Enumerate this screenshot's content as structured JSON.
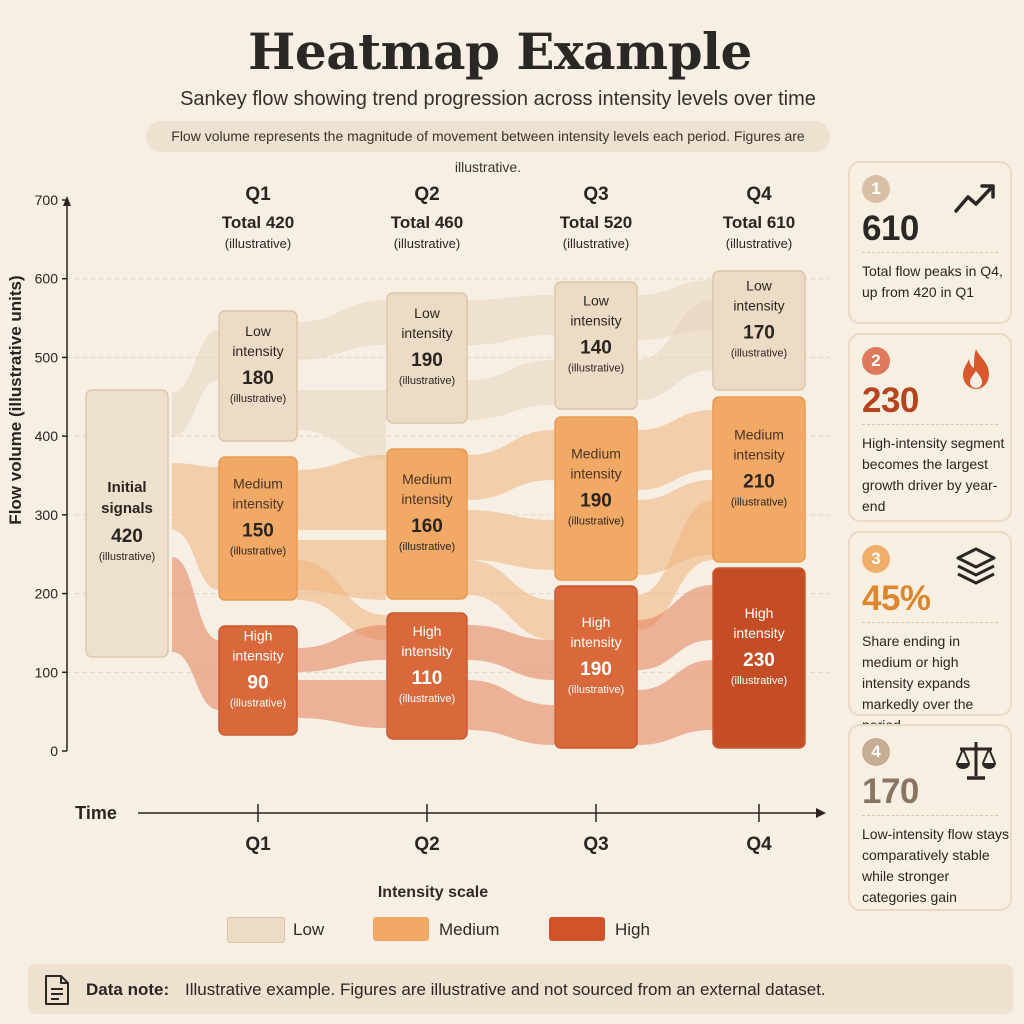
{
  "title": "Heatmap Example",
  "subtitle": "Sankey flow showing trend progression across intensity levels over time",
  "banner": "Flow volume represents the magnitude of movement between intensity levels each period. Figures are illustrative.",
  "colors": {
    "background": "#f7efe4",
    "low": "#ecdcc5",
    "medium": "#f1a965",
    "high": "#d9683a",
    "high_q4": "#c44d25",
    "initial": "#ede0cc"
  },
  "chart_data": {
    "type": "sankey",
    "ylabel": "Flow volume (illustrative units)",
    "xlabel": "Time",
    "ylim": [
      0,
      700
    ],
    "yticks": [
      0,
      100,
      200,
      300,
      400,
      500,
      600,
      700
    ],
    "periods": [
      "Q1",
      "Q2",
      "Q3",
      "Q4"
    ],
    "initial": {
      "label_lines": [
        "Initial",
        "signals"
      ],
      "value": 420,
      "note": "(illustrative)"
    },
    "period_totals": [
      {
        "period": "Q1",
        "total": "Total 420",
        "note": "(illustrative)"
      },
      {
        "period": "Q2",
        "total": "Total 460",
        "note": "(illustrative)"
      },
      {
        "period": "Q3",
        "total": "Total 520",
        "note": "(illustrative)"
      },
      {
        "period": "Q4",
        "total": "Total 610",
        "note": "(illustrative)"
      }
    ],
    "nodes": [
      {
        "period": "Q1",
        "level": "low",
        "label_lines": [
          "Low",
          "intensity"
        ],
        "value": 180,
        "note": "(illustrative)"
      },
      {
        "period": "Q1",
        "level": "medium",
        "label_lines": [
          "Medium",
          "intensity"
        ],
        "value": 150,
        "note": "(illustrative)"
      },
      {
        "period": "Q1",
        "level": "high",
        "label_lines": [
          "High",
          "intensity"
        ],
        "value": 90,
        "note": "(illustrative)"
      },
      {
        "period": "Q2",
        "level": "low",
        "label_lines": [
          "Low",
          "intensity"
        ],
        "value": 190,
        "note": "(illustrative)"
      },
      {
        "period": "Q2",
        "level": "medium",
        "label_lines": [
          "Medium",
          "intensity"
        ],
        "value": 160,
        "note": "(illustrative)"
      },
      {
        "period": "Q2",
        "level": "high",
        "label_lines": [
          "High",
          "intensity"
        ],
        "value": 110,
        "note": "(illustrative)"
      },
      {
        "period": "Q3",
        "level": "low",
        "label_lines": [
          "Low",
          "intensity"
        ],
        "value": 140,
        "note": "(illustrative)"
      },
      {
        "period": "Q3",
        "level": "medium",
        "label_lines": [
          "Medium",
          "intensity"
        ],
        "value": 190,
        "note": "(illustrative)"
      },
      {
        "period": "Q3",
        "level": "high",
        "label_lines": [
          "High",
          "intensity"
        ],
        "value": 190,
        "note": "(illustrative)"
      },
      {
        "period": "Q4",
        "level": "low",
        "label_lines": [
          "Low",
          "intensity"
        ],
        "value": 170,
        "note": "(illustrative)"
      },
      {
        "period": "Q4",
        "level": "medium",
        "label_lines": [
          "Medium",
          "intensity"
        ],
        "value": 210,
        "note": "(illustrative)"
      },
      {
        "period": "Q4",
        "level": "high",
        "label_lines": [
          "High",
          "intensity"
        ],
        "value": 230,
        "note": "(illustrative)"
      }
    ],
    "legend": {
      "title": "Intensity scale",
      "items": [
        {
          "label": "Low",
          "color": "#ecdcc5"
        },
        {
          "label": "Medium",
          "color": "#f1a965"
        },
        {
          "label": "High",
          "color": "#d1532a"
        }
      ]
    }
  },
  "cards": [
    {
      "number": "1",
      "value": "610",
      "text": "Total flow peaks in Q4, up from 420 in Q1",
      "icon": "trend-up-icon",
      "number_color": "#d8bfa6",
      "value_color": "#2b2724"
    },
    {
      "number": "2",
      "value": "230",
      "text": "High-intensity segment becomes the largest growth driver by year-end",
      "icon": "flame-icon",
      "number_color": "#dd7a5c",
      "value_color": "#b8431f"
    },
    {
      "number": "3",
      "value": "45%",
      "text": "Share ending in medium or high intensity expands markedly over the period",
      "icon": "layers-icon",
      "number_color": "#efae6a",
      "value_color": "#dd862c"
    },
    {
      "number": "4",
      "value": "170",
      "text": "Low-intensity flow stays comparatively stable while stronger categories gain",
      "icon": "scale-icon",
      "number_color": "#c7ad93",
      "value_color": "#8a7563"
    }
  ],
  "note": {
    "label": "Data note:",
    "text": "Illustrative example. Figures are illustrative and not sourced from an external dataset."
  }
}
